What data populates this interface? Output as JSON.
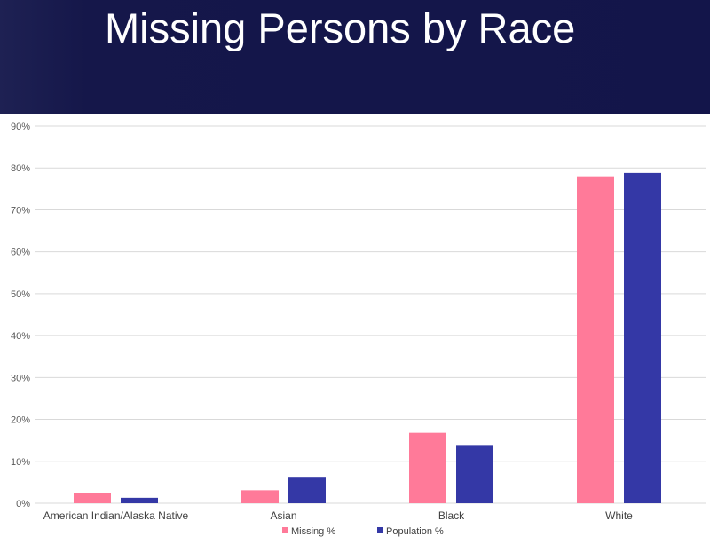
{
  "slide": {
    "title": "Missing Persons by Race"
  },
  "colors": {
    "header_background": "#13154a",
    "missing": "#ff7a99",
    "population": "#3438a6",
    "gridline": "#d9d9d9"
  },
  "chart_data": {
    "type": "bar",
    "title": "",
    "xlabel": "",
    "ylabel": "",
    "categories": [
      "American Indian/Alaska Native",
      "Asian",
      "Black",
      "White"
    ],
    "series": [
      {
        "name": "Missing %",
        "color": "#ff7a99",
        "values": [
          2.5,
          3.1,
          16.8,
          78.0
        ]
      },
      {
        "name": "Population %",
        "color": "#3438a6",
        "values": [
          1.3,
          6.1,
          13.9,
          78.8
        ]
      }
    ],
    "ylim": [
      0,
      90
    ],
    "yticks": [
      0,
      10,
      20,
      30,
      40,
      50,
      60,
      70,
      80,
      90
    ],
    "ytick_labels": [
      "0%",
      "10%",
      "20%",
      "30%",
      "40%",
      "50%",
      "60%",
      "70%",
      "80%",
      "90%"
    ],
    "grid": true,
    "legend_position": "bottom"
  }
}
